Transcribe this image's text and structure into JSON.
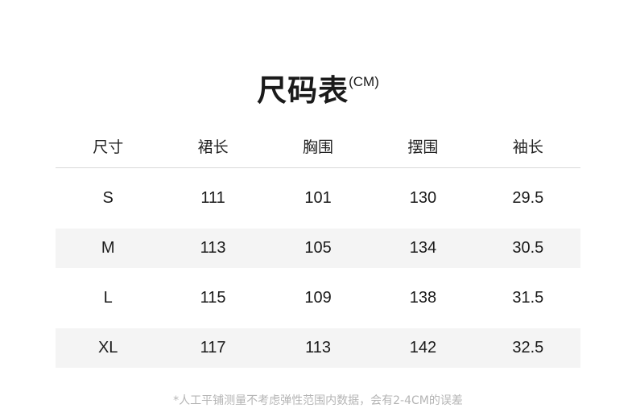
{
  "title": {
    "main": "尺码表",
    "unit": "(CM)"
  },
  "table": {
    "headers": [
      "尺寸",
      "裙长",
      "胸围",
      "摆围",
      "袖长"
    ],
    "rows": [
      [
        "S",
        "111",
        "101",
        "130",
        "29.5"
      ],
      [
        "M",
        "113",
        "105",
        "134",
        "30.5"
      ],
      [
        "L",
        "115",
        "109",
        "138",
        "31.5"
      ],
      [
        "XL",
        "117",
        "113",
        "142",
        "32.5"
      ]
    ]
  },
  "note": "*人工平铺测量不考虑弹性范围内数据，会有2-4CM的误差"
}
